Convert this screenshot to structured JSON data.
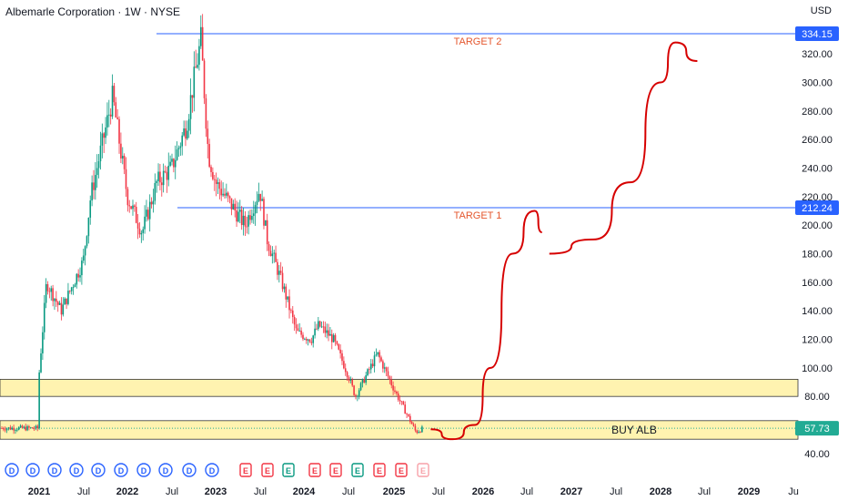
{
  "header": {
    "title": "Albemarle Corporation · 1W · NYSE",
    "currency": "USD"
  },
  "colors": {
    "up": "#089981",
    "down": "#f23645",
    "level_line": "#2962ff",
    "zone_fill": "#fff3b0",
    "projection": "#d60000",
    "label_text": "#e4572e",
    "current_price": "#22ab94"
  },
  "chart_data": {
    "type": "candlestick",
    "title": "Albemarle Corporation · 1W · NYSE",
    "ylim": [
      35,
      350
    ],
    "y_ticks": [
      40,
      60,
      80,
      100,
      120,
      140,
      160,
      180,
      200,
      220,
      240,
      260,
      280,
      300,
      320
    ],
    "x_ticks": [
      "2021",
      "Jul",
      "2022",
      "Jul",
      "2023",
      "Jul",
      "2024",
      "Jul",
      "2025",
      "Jul",
      "2026",
      "Jul",
      "2027",
      "Jul",
      "2028",
      "Jul",
      "2029",
      "Ju"
    ],
    "price_path": [
      [
        "2020-11",
        90
      ],
      [
        "2021-01",
        96
      ],
      [
        "2021-02",
        160
      ],
      [
        "2021-04",
        140
      ],
      [
        "2021-07",
        175
      ],
      [
        "2021-08",
        220
      ],
      [
        "2021-11",
        290
      ],
      [
        "2022-01",
        220
      ],
      [
        "2022-03",
        195
      ],
      [
        "2022-05",
        230
      ],
      [
        "2022-07",
        240
      ],
      [
        "2022-09",
        270
      ],
      [
        "2022-11",
        330
      ],
      [
        "2022-12",
        250
      ],
      [
        "2023-01",
        230
      ],
      [
        "2023-03",
        215
      ],
      [
        "2023-05",
        200
      ],
      [
        "2023-07",
        225
      ],
      [
        "2023-08",
        190
      ],
      [
        "2023-10",
        160
      ],
      [
        "2023-12",
        125
      ],
      [
        "2024-02",
        120
      ],
      [
        "2024-03",
        130
      ],
      [
        "2024-05",
        120
      ],
      [
        "2024-07",
        95
      ],
      [
        "2024-08",
        80
      ],
      [
        "2024-10",
        100
      ],
      [
        "2024-11",
        110
      ],
      [
        "2025-01",
        85
      ],
      [
        "2025-02",
        75
      ],
      [
        "2025-03",
        65
      ],
      [
        "2025-04",
        55
      ],
      [
        "2025-05",
        57.73
      ]
    ],
    "levels": [
      {
        "label": "TARGET 2",
        "value": 334.15,
        "tag": "334.15"
      },
      {
        "label": "TARGET 1",
        "value": 212.24,
        "tag": "212.24"
      }
    ],
    "zones": [
      {
        "from": 80,
        "to": 92,
        "label": ""
      },
      {
        "from": 50,
        "to": 63,
        "label": "BUY ALB"
      }
    ],
    "current_price": 57.73,
    "current_price_tag": "57.73",
    "events": [
      "D",
      "D",
      "D",
      "D",
      "D",
      "D",
      "D",
      "D",
      "D",
      "D",
      "E",
      "E",
      "E",
      "E",
      "E",
      "E",
      "E",
      "E",
      "E",
      "E",
      "E",
      "E",
      "E"
    ],
    "projection": [
      [
        "2025-06",
        57
      ],
      [
        "2025-09",
        50
      ],
      [
        "2025-12",
        60
      ],
      [
        "2026-02",
        100
      ],
      [
        "2026-05",
        180
      ],
      [
        "2026-08",
        210
      ],
      [
        "2026-09",
        195
      ]
    ],
    "projection2": [
      [
        "2026-10",
        180
      ],
      [
        "2027-04",
        190
      ],
      [
        "2027-09",
        230
      ],
      [
        "2028-01",
        300
      ],
      [
        "2028-03",
        328
      ],
      [
        "2028-06",
        315
      ]
    ]
  }
}
